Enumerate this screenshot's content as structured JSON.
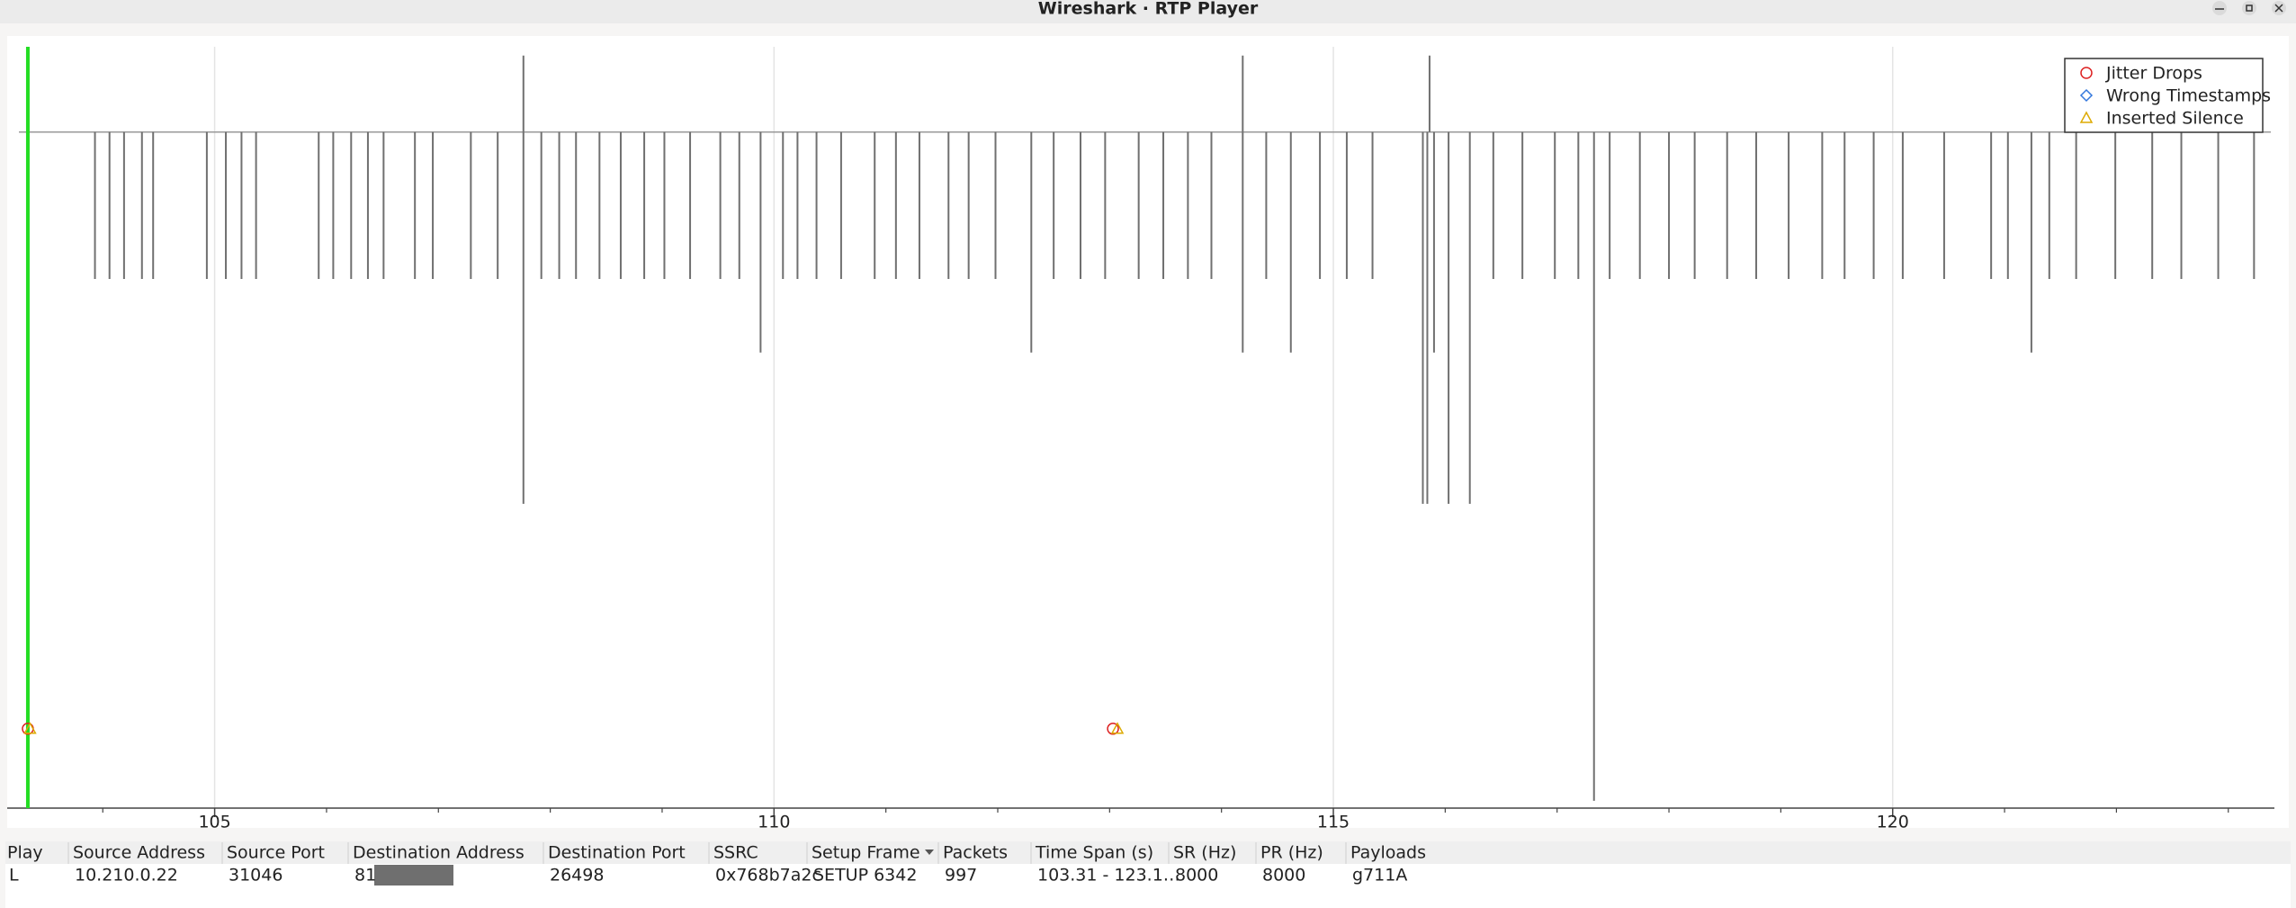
{
  "window_title": "Wireshark · RTP Player",
  "chart_data": {
    "type": "spike",
    "xlim": [
      103.25,
      123.38
    ],
    "ylim": [
      -46,
      5.8
    ],
    "xticks": [
      105,
      110,
      115,
      120
    ],
    "minor_xticks": [
      104,
      106,
      107,
      108,
      109,
      111,
      112,
      113,
      114,
      116,
      117,
      118,
      119,
      121,
      122,
      123
    ],
    "grid": true,
    "color": "#707070",
    "playhead": 103.33,
    "playhead_color": "#22dd22",
    "legend": "upper right",
    "x": [
      103.93,
      104.06,
      104.19,
      104.35,
      104.45,
      104.93,
      105.1,
      105.24,
      105.37,
      105.93,
      106.06,
      106.22,
      106.37,
      106.51,
      106.79,
      106.95,
      107.29,
      107.53,
      107.76,
      107.76,
      107.92,
      108.08,
      108.23,
      108.44,
      108.63,
      108.84,
      109.02,
      109.25,
      109.52,
      109.69,
      109.88,
      110.08,
      110.21,
      110.38,
      110.6,
      110.9,
      111.09,
      111.3,
      111.56,
      111.74,
      111.98,
      112.3,
      112.5,
      112.74,
      112.96,
      113.26,
      113.48,
      113.7,
      113.91,
      114.19,
      114.19,
      114.4,
      114.62,
      114.88,
      115.12,
      115.35,
      115.8,
      115.84,
      115.86,
      115.9,
      116.03,
      116.22,
      116.43,
      116.69,
      116.98,
      117.19,
      117.33,
      117.47,
      117.74,
      118.0,
      118.23,
      118.52,
      118.78,
      119.07,
      119.37,
      119.57,
      119.83,
      120.09,
      120.46,
      120.88,
      121.03,
      121.24,
      121.4,
      121.64,
      121.99,
      122.32,
      122.58,
      122.91,
      123.23
    ],
    "values": [
      -10,
      -10,
      -10,
      -10,
      -10,
      -10,
      -10,
      -10,
      -10,
      -10,
      -10,
      -10,
      -10,
      -10,
      -10,
      -10,
      -10,
      -10,
      -25.3,
      5.2,
      -10,
      -10,
      -10,
      -10,
      -10,
      -10,
      -10,
      -10,
      -10,
      -10,
      -15,
      -10,
      -10,
      -10,
      -10,
      -10,
      -10,
      -10,
      -10,
      -10,
      -10,
      -15,
      -10,
      -10,
      -10,
      -10,
      -10,
      -10,
      -10,
      5.2,
      -15,
      -10,
      -15,
      -10,
      -10,
      -10,
      -25.3,
      -25.3,
      5.2,
      -15,
      -25.3,
      -25.3,
      -10,
      -10,
      -10,
      -10,
      -45.5,
      -10,
      -10,
      -10,
      -10,
      -10,
      -10,
      -10,
      -10,
      -10,
      -10,
      -10,
      -10,
      -10,
      -10,
      -15,
      -10,
      -10,
      -10,
      -10,
      -10,
      -10,
      -10
    ],
    "series": [
      {
        "name": "Jitter Drops",
        "color": "#dd2222",
        "marker": "circle",
        "x": [
          103.33,
          113.03
        ],
        "values": [
          -40.6,
          -40.6
        ]
      },
      {
        "name": "Wrong Timestamps",
        "color": "#3377dd",
        "marker": "diamond",
        "x": [],
        "values": []
      },
      {
        "name": "Inserted Silence",
        "color": "#ddaa00",
        "marker": "triangle",
        "x": [
          103.35,
          113.07
        ],
        "values": [
          -40.6,
          -40.6
        ]
      }
    ]
  },
  "table": {
    "headers": [
      "Play",
      "Source Address",
      "Source Port",
      "Destination Address",
      "Destination Port",
      "SSRC",
      "Setup Frame",
      "Packets",
      "Time Span (s)",
      "SR (Hz)",
      "PR (Hz)",
      "Payloads"
    ],
    "rows": [
      [
        "L",
        "10.210.0.22",
        "31046",
        "81",
        "26498",
        "0x768b7a2c",
        "SETUP 6342",
        "997",
        "103.31 - 123.1…",
        "8000",
        "8000",
        "g711A"
      ]
    ]
  }
}
